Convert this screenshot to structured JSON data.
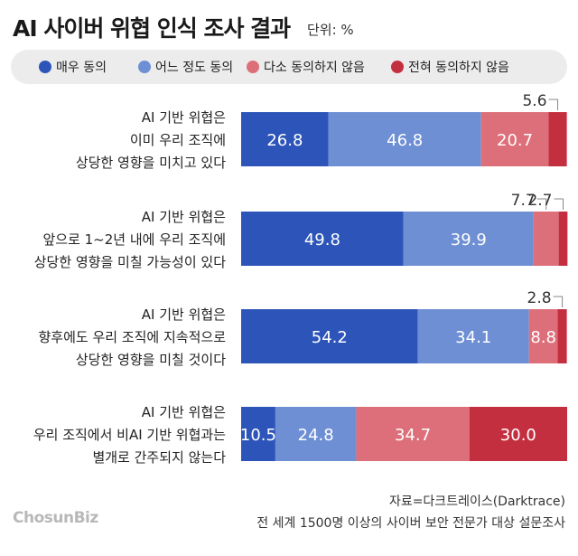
{
  "chart_data": {
    "type": "bar",
    "orientation": "horizontal",
    "stacked": true,
    "title": "AI 사이버 위협 인식 조사 결과",
    "unit_label": "단위: %",
    "categories": [
      [
        "AI 기반 위협은",
        "이미 우리 조직에",
        "상당한 영향을 미치고 있다"
      ],
      [
        "AI 기반 위협은",
        "앞으로 1~2년 내에 우리 조직에",
        "상당한 영향을 미칠 가능성이 있다"
      ],
      [
        "AI 기반 위협은",
        "향후에도 우리 조직에 지속적으로",
        "상당한 영향을 미칠 것이다"
      ],
      [
        "AI 기반 위협은",
        "우리 조직에서 비AI 기반 위협과는",
        "별개로 간주되지 않는다"
      ]
    ],
    "series": [
      {
        "name": "매우 동의",
        "color": "#2d55b9",
        "values": [
          26.8,
          49.8,
          54.2,
          10.5
        ]
      },
      {
        "name": "어느 정도 동의",
        "color": "#6e8fd4",
        "values": [
          46.8,
          39.9,
          34.1,
          24.8
        ]
      },
      {
        "name": "다소 동의하지 않음",
        "color": "#dd6f7a",
        "values": [
          20.7,
          7.7,
          8.8,
          34.7
        ]
      },
      {
        "name": "전혀 동의하지 않음",
        "color": "#c42f3f",
        "values": [
          5.6,
          2.7,
          2.8,
          30.0
        ]
      }
    ],
    "value_labels": [
      [
        "26.8",
        "46.8",
        "20.7",
        "5.6"
      ],
      [
        "49.8",
        "39.9",
        "7.7",
        "2.7"
      ],
      [
        "54.2",
        "34.1",
        "8.8",
        "2.8"
      ],
      [
        "10.5",
        "24.8",
        "34.7",
        "30.0"
      ]
    ],
    "xlim": [
      0,
      100
    ],
    "legend_position": "top",
    "grid": false
  },
  "source": {
    "line1": "자료=다크트레이스(Darktrace)",
    "line2": "전 세계 1500명 이상의 사이버 보안 전문가 대상 설문조사"
  },
  "logo": "ChosunBiz"
}
